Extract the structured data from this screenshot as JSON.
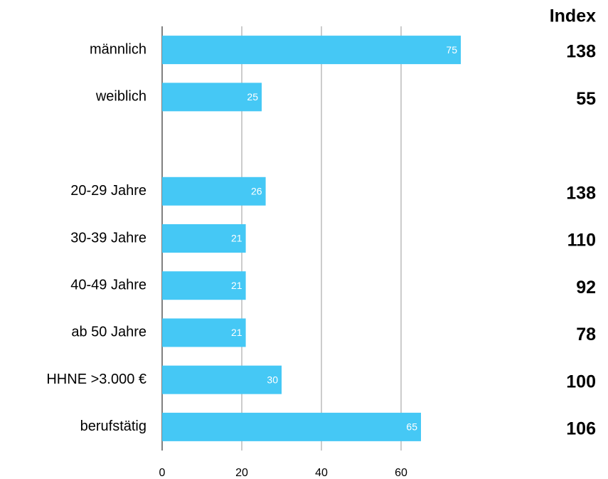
{
  "chart_data": {
    "type": "barh",
    "categories": [
      "männlich",
      "weiblich",
      null,
      "20-29 Jahre",
      "30-39 Jahre",
      "40-49 Jahre",
      "ab 50 Jahre",
      "HHNE >3.000 €",
      "berufstätig"
    ],
    "values": [
      75,
      25,
      null,
      26,
      21,
      21,
      21,
      30,
      65
    ],
    "color": "#45c8f5",
    "xlim": [
      0,
      80
    ],
    "xticks": [
      0,
      20,
      40,
      60
    ],
    "grid": true,
    "index_header": "Index",
    "index_values": [
      138,
      55,
      null,
      138,
      110,
      92,
      78,
      100,
      106
    ]
  }
}
